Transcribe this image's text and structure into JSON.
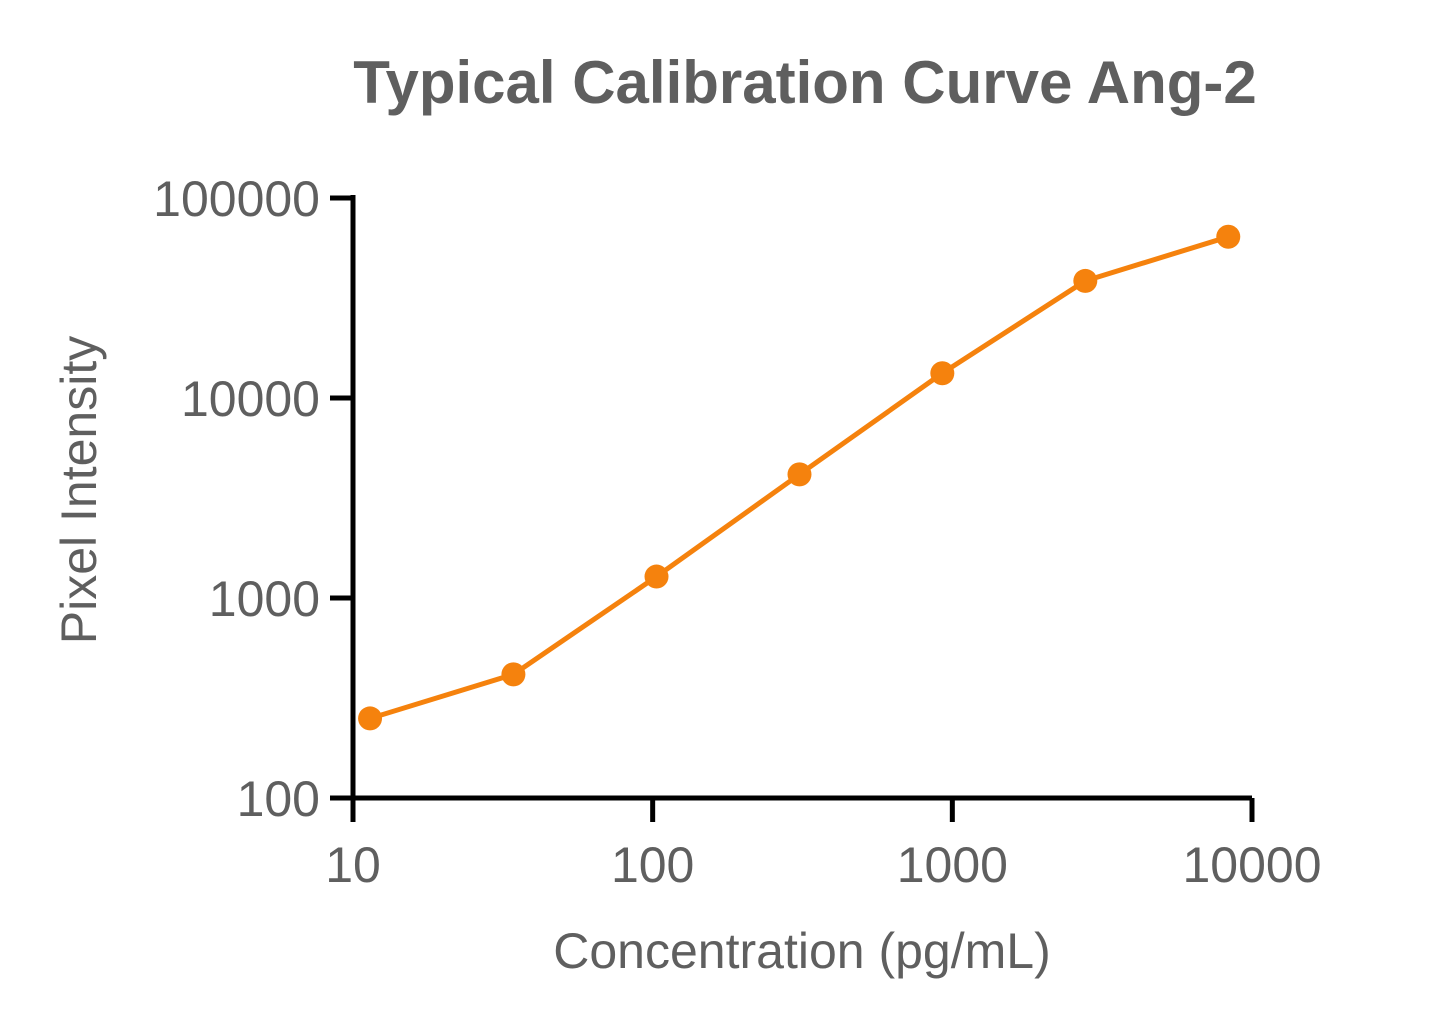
{
  "chart_data": {
    "type": "line",
    "title": "Typical Calibration Curve Ang-2",
    "xlabel": "Concentration (pg/mL)",
    "ylabel": "Pixel Intensity",
    "x_scale": "log",
    "y_scale": "log",
    "xlim": [
      10,
      10000
    ],
    "ylim": [
      100,
      100000
    ],
    "x_ticks": [
      10,
      100,
      1000,
      10000
    ],
    "x_tick_labels": [
      "10",
      "100",
      "1000",
      "10000"
    ],
    "y_ticks": [
      100,
      1000,
      10000,
      100000
    ],
    "y_tick_labels": [
      "100",
      "1000",
      "10000",
      "100000"
    ],
    "grid": false,
    "legend": "none",
    "series": [
      {
        "color": "#f5820d",
        "points": [
          {
            "x": 11.4,
            "y": 250
          },
          {
            "x": 34.3,
            "y": 415
          },
          {
            "x": 103,
            "y": 1280
          },
          {
            "x": 309,
            "y": 4150
          },
          {
            "x": 926,
            "y": 13300
          },
          {
            "x": 2778,
            "y": 38500
          },
          {
            "x": 8333,
            "y": 64000
          }
        ]
      }
    ]
  }
}
